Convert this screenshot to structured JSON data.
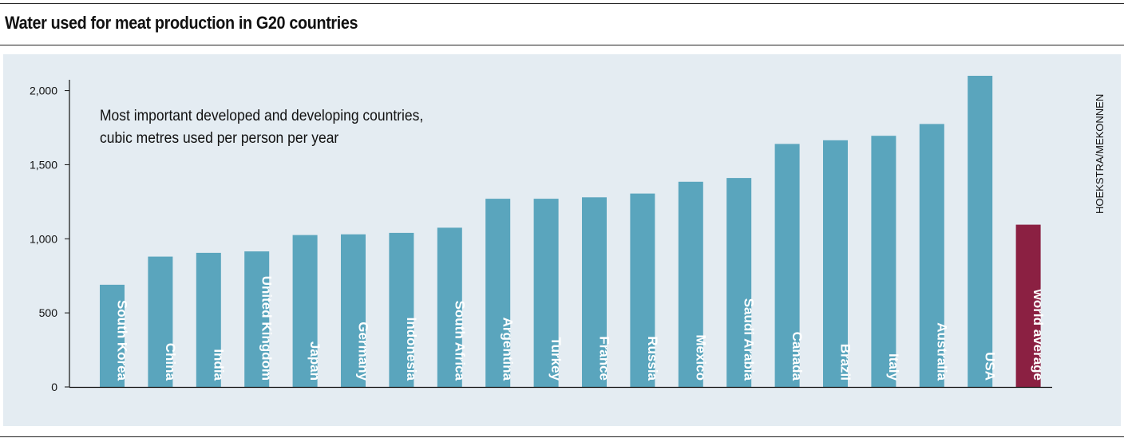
{
  "title": "Water used for meat production in G20 countries",
  "note_line1": "Most important developed and developing countries,",
  "note_line2": "cubic metres used per person per year",
  "credit": "HOEKSTRA/MEKONNEN",
  "colors": {
    "bar": "#5aa5bd",
    "highlight": "#8b2042",
    "panel": "#e4ecf2"
  },
  "chart_data": {
    "type": "bar",
    "title": "Water used for meat production in G20 countries",
    "subtitle": "Most important developed and developing countries, cubic metres used per person per year",
    "categories": [
      "South Korea",
      "China",
      "India",
      "United Kingdom",
      "Japan",
      "Germany",
      "Indonesia",
      "South Africa",
      "Argentina",
      "Turkey",
      "France",
      "Russia",
      "Mexico",
      "Saudi Arabia",
      "Canada",
      "Brazil",
      "Italy",
      "Australia",
      "USA",
      "world average"
    ],
    "values": [
      690,
      880,
      905,
      915,
      1025,
      1030,
      1040,
      1075,
      1270,
      1270,
      1280,
      1305,
      1385,
      1410,
      1640,
      1665,
      1695,
      1775,
      2100,
      1095
    ],
    "highlight": "world average",
    "xlabel": "",
    "ylabel": "",
    "ylim": [
      0,
      2100
    ],
    "yticks": [
      0,
      500,
      1000,
      1500,
      2000
    ],
    "ytick_labels": [
      "0",
      "500",
      "1,000",
      "1,500",
      "2,000"
    ],
    "grid": false,
    "legend": "none"
  }
}
